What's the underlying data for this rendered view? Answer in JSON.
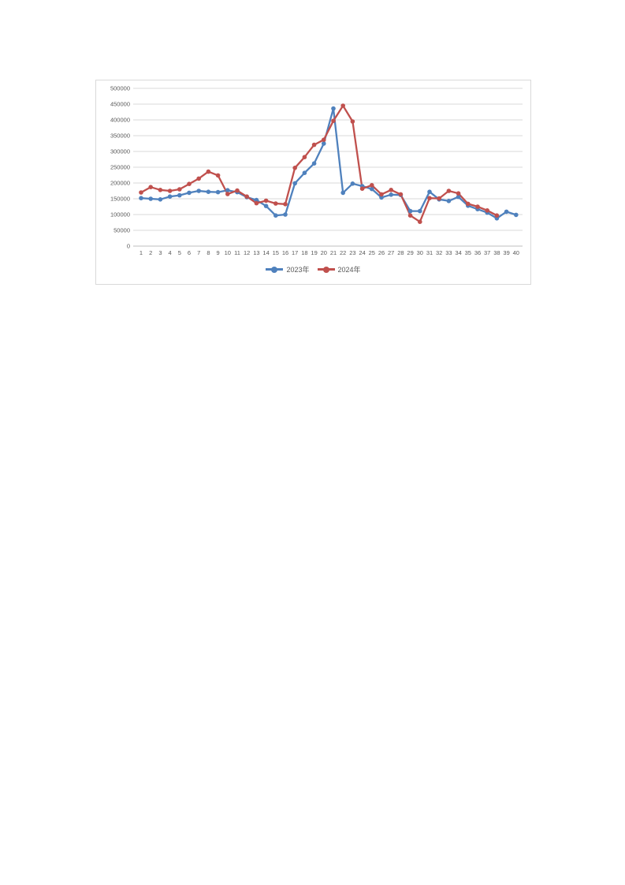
{
  "page": {
    "background": "#ffffff"
  },
  "chart": {
    "border_color": "#d9d9d9",
    "background": "#ffffff",
    "axis_text_color": "#595959",
    "gridline_color": "#d9d9d9",
    "axisline_color": "#bfbfbf"
  },
  "chart_data": {
    "type": "line",
    "title": "",
    "xlabel": "",
    "ylabel": "",
    "ylim": [
      0,
      500000
    ],
    "ytick_step": 50000,
    "yticks": [
      0,
      50000,
      100000,
      150000,
      200000,
      250000,
      300000,
      350000,
      400000,
      450000,
      500000
    ],
    "grid": true,
    "legend_position": "bottom",
    "categories": [
      1,
      2,
      3,
      4,
      5,
      6,
      7,
      8,
      9,
      10,
      11,
      12,
      13,
      14,
      15,
      16,
      17,
      18,
      19,
      20,
      21,
      22,
      23,
      24,
      25,
      26,
      27,
      28,
      29,
      30,
      31,
      32,
      33,
      34,
      35,
      36,
      37,
      38,
      39,
      40
    ],
    "series": [
      {
        "name": "2023年",
        "color": "#4F81BD",
        "values": [
          152000,
          150000,
          148000,
          157000,
          161000,
          169000,
          175000,
          172000,
          171000,
          177000,
          171000,
          155000,
          146000,
          127000,
          97000,
          100000,
          199000,
          232000,
          262000,
          325000,
          436000,
          169000,
          198000,
          190000,
          181000,
          154000,
          163000,
          162000,
          111000,
          111000,
          172000,
          148000,
          143000,
          156000,
          128000,
          117000,
          106000,
          88000,
          109000,
          99000
        ]
      },
      {
        "name": "2024年",
        "color": "#C0504D",
        "values": [
          170000,
          187000,
          178000,
          175000,
          180000,
          197000,
          214000,
          236000,
          224000,
          165000,
          176000,
          157000,
          136000,
          144000,
          135000,
          133000,
          248000,
          282000,
          321000,
          337000,
          397000,
          445000,
          395000,
          182000,
          193000,
          164000,
          178000,
          164000,
          97000,
          77000,
          152000,
          151000,
          175000,
          167000,
          134000,
          125000,
          113000,
          97000
        ]
      }
    ]
  }
}
